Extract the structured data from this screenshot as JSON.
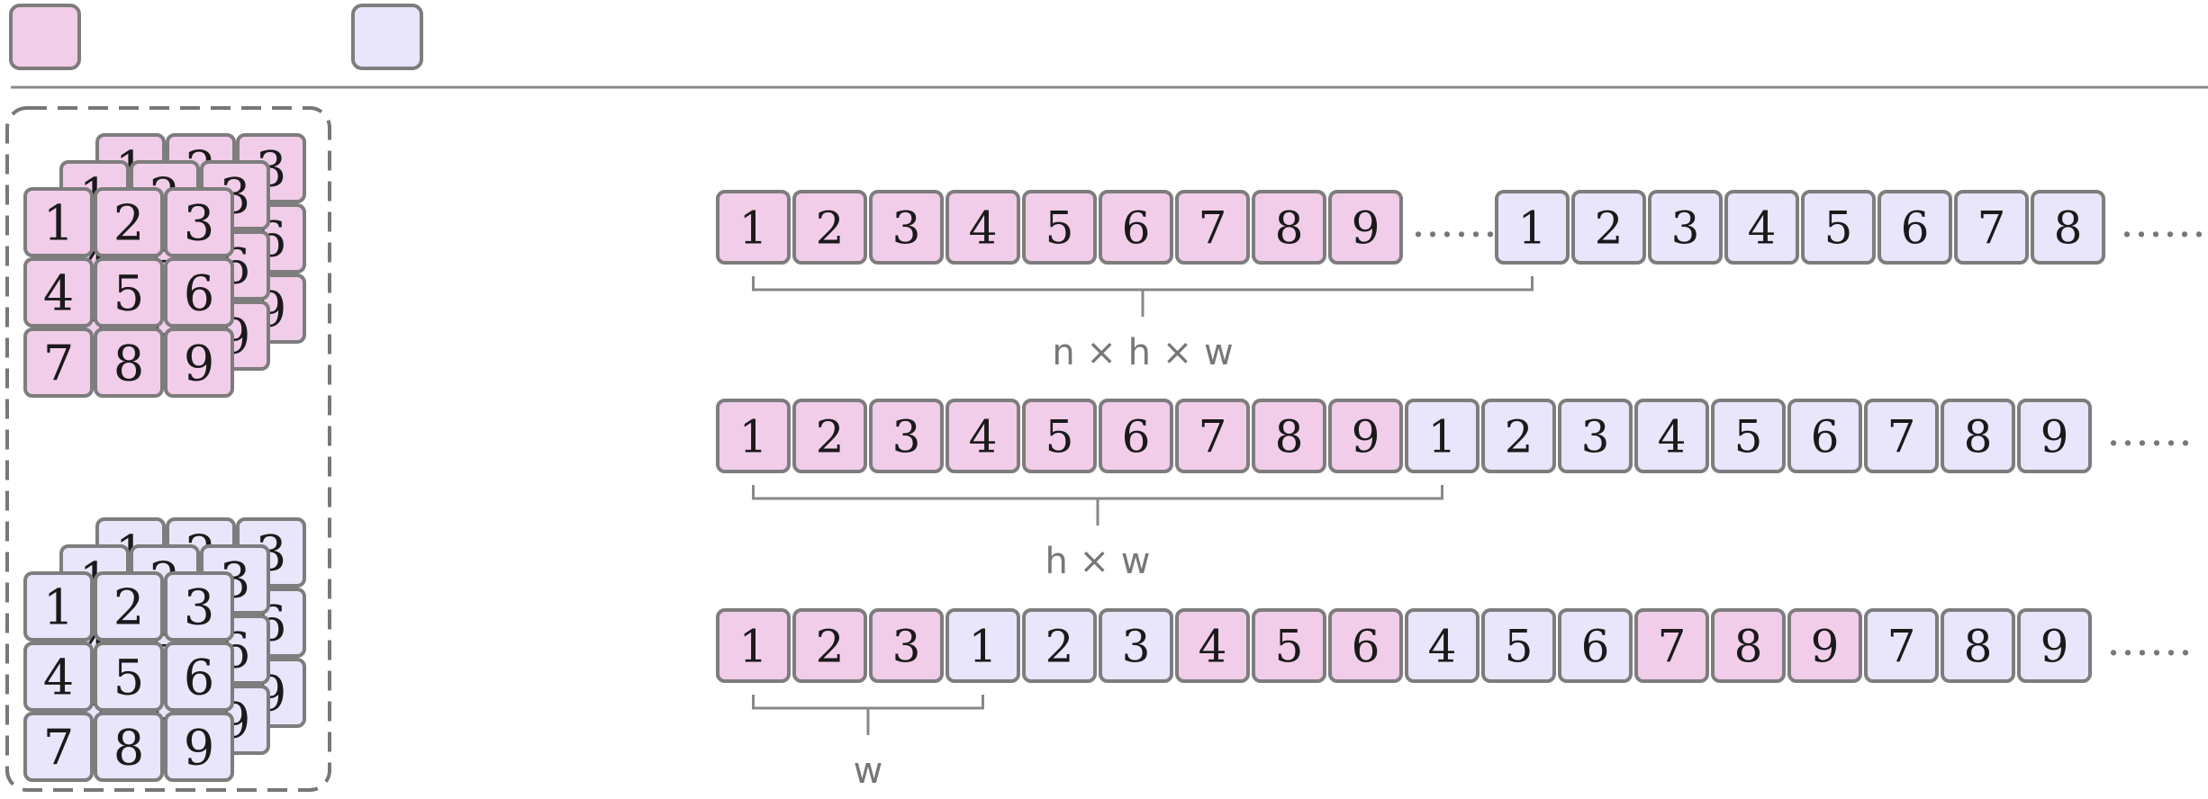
{
  "colors": {
    "pink": "#f2cde9",
    "lavender": "#e9e5fb",
    "cell_border": "#7d7d7d",
    "line": "#888888",
    "dashed_border": "#777777",
    "label_text": "#777777"
  },
  "legend": [
    {
      "name": "legend-swatch-pink",
      "color": "pink"
    },
    {
      "name": "legend-swatch-lavender",
      "color": "lavender"
    }
  ],
  "stacks": [
    {
      "color": "pink",
      "grid": [
        "1",
        "2",
        "3",
        "4",
        "5",
        "6",
        "7",
        "8",
        "9"
      ],
      "layers": 3
    },
    {
      "color": "lavender",
      "grid": [
        "1",
        "2",
        "3",
        "4",
        "5",
        "6",
        "7",
        "8",
        "9"
      ],
      "layers": 3
    }
  ],
  "rows": [
    {
      "cells": [
        {
          "n": "1",
          "c": "pink"
        },
        {
          "n": "2",
          "c": "pink"
        },
        {
          "n": "3",
          "c": "pink"
        },
        {
          "n": "4",
          "c": "pink"
        },
        {
          "n": "5",
          "c": "pink"
        },
        {
          "n": "6",
          "c": "pink"
        },
        {
          "n": "7",
          "c": "pink"
        },
        {
          "n": "8",
          "c": "pink"
        },
        {
          "n": "9",
          "c": "pink"
        },
        {
          "dots": true
        },
        {
          "n": "1",
          "c": "lavender"
        },
        {
          "n": "2",
          "c": "lavender"
        },
        {
          "n": "3",
          "c": "lavender"
        },
        {
          "n": "4",
          "c": "lavender"
        },
        {
          "n": "5",
          "c": "lavender"
        },
        {
          "n": "6",
          "c": "lavender"
        },
        {
          "n": "7",
          "c": "lavender"
        },
        {
          "n": "8",
          "c": "lavender"
        }
      ],
      "brace": {
        "from": 0,
        "to": 10,
        "label": "n × h × w"
      }
    },
    {
      "cells": [
        {
          "n": "1",
          "c": "pink"
        },
        {
          "n": "2",
          "c": "pink"
        },
        {
          "n": "3",
          "c": "pink"
        },
        {
          "n": "4",
          "c": "pink"
        },
        {
          "n": "5",
          "c": "pink"
        },
        {
          "n": "6",
          "c": "pink"
        },
        {
          "n": "7",
          "c": "pink"
        },
        {
          "n": "8",
          "c": "pink"
        },
        {
          "n": "9",
          "c": "pink"
        },
        {
          "n": "1",
          "c": "lavender"
        },
        {
          "n": "2",
          "c": "lavender"
        },
        {
          "n": "3",
          "c": "lavender"
        },
        {
          "n": "4",
          "c": "lavender"
        },
        {
          "n": "5",
          "c": "lavender"
        },
        {
          "n": "6",
          "c": "lavender"
        },
        {
          "n": "7",
          "c": "lavender"
        },
        {
          "n": "8",
          "c": "lavender"
        },
        {
          "n": "9",
          "c": "lavender"
        }
      ],
      "brace": {
        "from": 0,
        "to": 9,
        "label": "h × w"
      }
    },
    {
      "cells": [
        {
          "n": "1",
          "c": "pink"
        },
        {
          "n": "2",
          "c": "pink"
        },
        {
          "n": "3",
          "c": "pink"
        },
        {
          "n": "1",
          "c": "lavender"
        },
        {
          "n": "2",
          "c": "lavender"
        },
        {
          "n": "3",
          "c": "lavender"
        },
        {
          "n": "4",
          "c": "pink"
        },
        {
          "n": "5",
          "c": "pink"
        },
        {
          "n": "6",
          "c": "pink"
        },
        {
          "n": "4",
          "c": "lavender"
        },
        {
          "n": "5",
          "c": "lavender"
        },
        {
          "n": "6",
          "c": "lavender"
        },
        {
          "n": "7",
          "c": "pink"
        },
        {
          "n": "8",
          "c": "pink"
        },
        {
          "n": "9",
          "c": "pink"
        },
        {
          "n": "7",
          "c": "lavender"
        },
        {
          "n": "8",
          "c": "lavender"
        },
        {
          "n": "9",
          "c": "lavender"
        }
      ],
      "brace": {
        "from": 0,
        "to": 3,
        "label": "w"
      }
    }
  ],
  "trailing_dots": "……"
}
